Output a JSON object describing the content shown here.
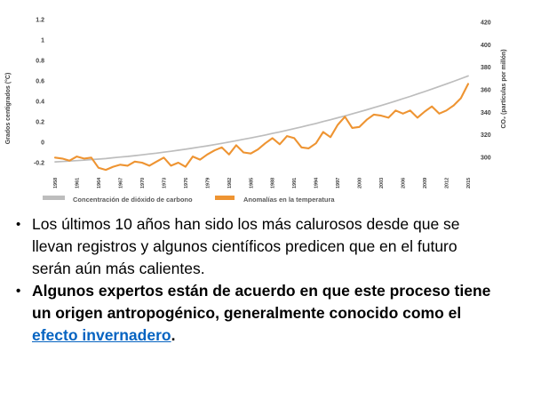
{
  "chart_data": {
    "type": "line",
    "title": "",
    "grid": false,
    "legend_position": "bottom",
    "x_ticks": [
      1958,
      1961,
      1964,
      1967,
      1970,
      1973,
      1976,
      1979,
      1982,
      1985,
      1988,
      1991,
      1994,
      1997,
      2000,
      2003,
      2006,
      2009,
      2012,
      2015
    ],
    "x": [
      1958,
      1959,
      1960,
      1961,
      1962,
      1963,
      1964,
      1965,
      1966,
      1967,
      1968,
      1969,
      1970,
      1971,
      1972,
      1973,
      1974,
      1975,
      1976,
      1977,
      1978,
      1979,
      1980,
      1981,
      1982,
      1983,
      1984,
      1985,
      1986,
      1987,
      1988,
      1989,
      1990,
      1991,
      1992,
      1993,
      1994,
      1995,
      1996,
      1997,
      1998,
      1999,
      2000,
      2001,
      2002,
      2003,
      2004,
      2005,
      2006,
      2007,
      2008,
      2009,
      2010,
      2011,
      2012,
      2013,
      2014,
      2015
    ],
    "left_axis": {
      "label": "Grados centigrados (°C)",
      "ticks": [
        "1.2",
        "1",
        "0.8",
        "0.6",
        "0.4",
        "0.2",
        "0",
        "-0.2"
      ],
      "range": [
        -0.2,
        1.2
      ]
    },
    "right_axis": {
      "label": "CO₂ (partículas por millón)",
      "ticks": [
        "420",
        "400",
        "380",
        "360",
        "340",
        "320",
        "300"
      ],
      "range": [
        300,
        420
      ]
    },
    "series": [
      {
        "name": "Concentración de dióxido de carbono",
        "axis": "right",
        "color": "#BDBDBD",
        "values": [
          296.0,
          296.3,
          296.7,
          297.1,
          297.5,
          298.0,
          298.4,
          298.9,
          299.6,
          300.2,
          300.8,
          301.5,
          302.2,
          303.0,
          303.7,
          304.6,
          305.4,
          306.3,
          307.2,
          308.2,
          309.2,
          310.2,
          311.3,
          312.4,
          313.6,
          314.8,
          316.0,
          317.2,
          318.5,
          319.8,
          321.2,
          322.6,
          324.0,
          325.5,
          327.0,
          328.6,
          330.1,
          331.8,
          333.4,
          335.1,
          336.8,
          338.6,
          340.4,
          342.2,
          344.1,
          346.0,
          348.0,
          350.0,
          352.1,
          354.1,
          356.3,
          358.4,
          360.6,
          362.9,
          365.2,
          367.5,
          369.9,
          372.3
        ]
      },
      {
        "name": "Anomalías en la temperatura",
        "axis": "left",
        "color": "#EE9432",
        "values": [
          -0.15,
          -0.16,
          -0.18,
          -0.14,
          -0.16,
          -0.15,
          -0.25,
          -0.27,
          -0.24,
          -0.22,
          -0.23,
          -0.19,
          -0.2,
          -0.23,
          -0.19,
          -0.15,
          -0.23,
          -0.2,
          -0.24,
          -0.14,
          -0.17,
          -0.12,
          -0.08,
          -0.05,
          -0.12,
          -0.03,
          -0.1,
          -0.11,
          -0.07,
          -0.01,
          0.04,
          -0.02,
          0.06,
          0.04,
          -0.05,
          -0.06,
          -0.01,
          0.1,
          0.05,
          0.17,
          0.25,
          0.14,
          0.15,
          0.22,
          0.27,
          0.26,
          0.24,
          0.31,
          0.28,
          0.31,
          0.24,
          0.3,
          0.35,
          0.28,
          0.31,
          0.36,
          0.43,
          0.57
        ]
      }
    ]
  },
  "bullets": [
    {
      "text": "Los últimos 10 años han sido los más calurosos desde que se llevan registros y algunos científicos predicen que en el futuro serán aún más calientes."
    },
    {
      "text_before_link": "Algunos expertos están de acuerdo en que este proceso tiene un origen antropogénico, generalmente conocido como el ",
      "link_text": "efecto invernadero",
      "text_after_link": "."
    }
  ]
}
